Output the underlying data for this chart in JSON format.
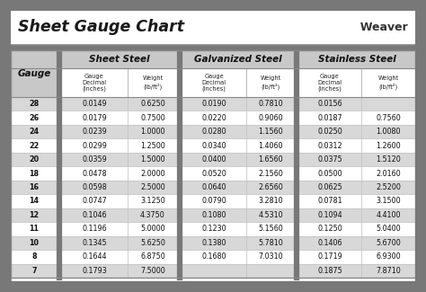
{
  "title": "Sheet Gauge Chart",
  "bg_outer": "#787878",
  "bg_white": "#ffffff",
  "bg_gray_table": "#c0c0c0",
  "row_gray": "#d8d8d8",
  "row_white": "#ffffff",
  "header_section_bg": "#c8c8c8",
  "gauges": [
    28,
    26,
    24,
    22,
    20,
    18,
    16,
    14,
    12,
    11,
    10,
    8,
    7
  ],
  "sheet_steel_dec": [
    "0.0149",
    "0.0179",
    "0.0239",
    "0.0299",
    "0.0359",
    "0.0478",
    "0.0598",
    "0.0747",
    "0.1046",
    "0.1196",
    "0.1345",
    "0.1644",
    "0.1793"
  ],
  "sheet_steel_wt": [
    "0.6250",
    "0.7500",
    "1.0000",
    "1.2500",
    "1.5000",
    "2.0000",
    "2.5000",
    "3.1250",
    "4.3750",
    "5.0000",
    "5.6250",
    "6.8750",
    "7.5000"
  ],
  "galv_dec": [
    "0.0190",
    "0.0220",
    "0.0280",
    "0.0340",
    "0.0400",
    "0.0520",
    "0.0640",
    "0.0790",
    "0.1080",
    "0.1230",
    "0.1380",
    "0.1680",
    ""
  ],
  "galv_wt": [
    "0.7810",
    "0.9060",
    "1.1560",
    "1.4060",
    "1.6560",
    "2.1560",
    "2.6560",
    "3.2810",
    "4.5310",
    "5.1560",
    "5.7810",
    "7.0310",
    ""
  ],
  "ss_dec": [
    "0.0156",
    "0.0187",
    "0.0250",
    "0.0312",
    "0.0375",
    "0.0500",
    "0.0625",
    "0.0781",
    "0.1094",
    "0.1250",
    "0.1406",
    "0.1719",
    "0.1875"
  ],
  "ss_wt": [
    "",
    "0.7560",
    "1.0080",
    "1.2600",
    "1.5120",
    "2.0160",
    "2.5200",
    "3.1500",
    "4.4100",
    "5.0400",
    "5.6700",
    "6.9300",
    "7.8710"
  ]
}
